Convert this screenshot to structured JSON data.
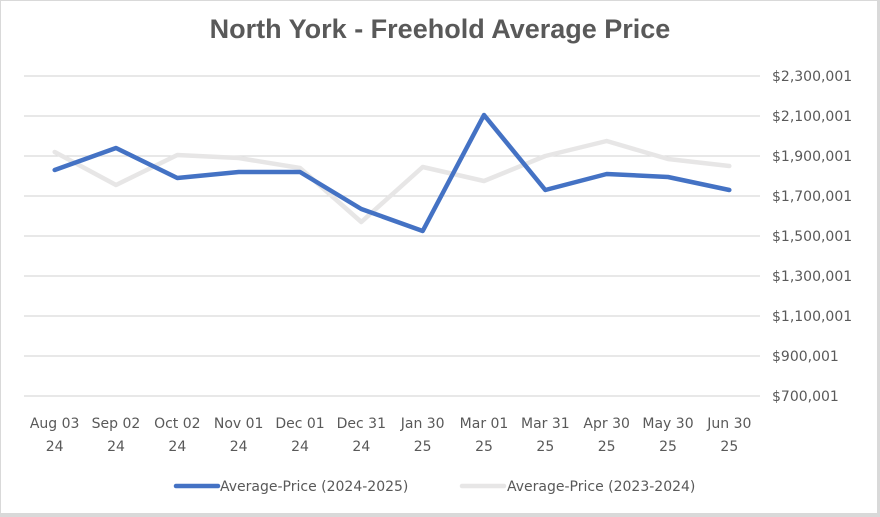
{
  "chart_data": {
    "type": "line",
    "title": "North York - Freehold Average Price",
    "xlabel": "",
    "ylabel": "",
    "categories": [
      [
        "Aug 03",
        "24"
      ],
      [
        "Sep 02",
        "24"
      ],
      [
        "Oct 02",
        "24"
      ],
      [
        "Nov 01",
        "24"
      ],
      [
        "Dec 01",
        "24"
      ],
      [
        "Dec 31",
        "24"
      ],
      [
        "Jan 30",
        "25"
      ],
      [
        "Mar 01",
        "25"
      ],
      [
        "Mar 31",
        "25"
      ],
      [
        "Apr 30",
        "25"
      ],
      [
        "May 30",
        "25"
      ],
      [
        "Jun 30",
        "25"
      ]
    ],
    "ylim": [
      700001,
      2300001
    ],
    "yticks": [
      700001,
      900001,
      1100001,
      1300001,
      1500001,
      1700001,
      1900001,
      2100001,
      2300001
    ],
    "ytick_labels": [
      "$700,001",
      "$900,001",
      "$1,100,001",
      "$1,300,001",
      "$1,500,001",
      "$1,700,001",
      "$1,900,001",
      "$2,100,001",
      "$2,300,001"
    ],
    "y_axis_position": "right",
    "grid": true,
    "legend_position": "bottom",
    "series": [
      {
        "name": "Average-Price (2024-2025)",
        "color": "#4472c4",
        "values": [
          1830000,
          1940000,
          1790000,
          1820000,
          1820000,
          1635000,
          1525000,
          2105000,
          1730000,
          1810000,
          1795000,
          1730000
        ]
      },
      {
        "name": "Average-Price (2023-2024)",
        "color": "#e7e6e6",
        "values": [
          1920000,
          1755000,
          1905000,
          1890000,
          1840000,
          1570000,
          1845000,
          1775000,
          1900000,
          1975000,
          1885000,
          1850000
        ]
      }
    ]
  }
}
